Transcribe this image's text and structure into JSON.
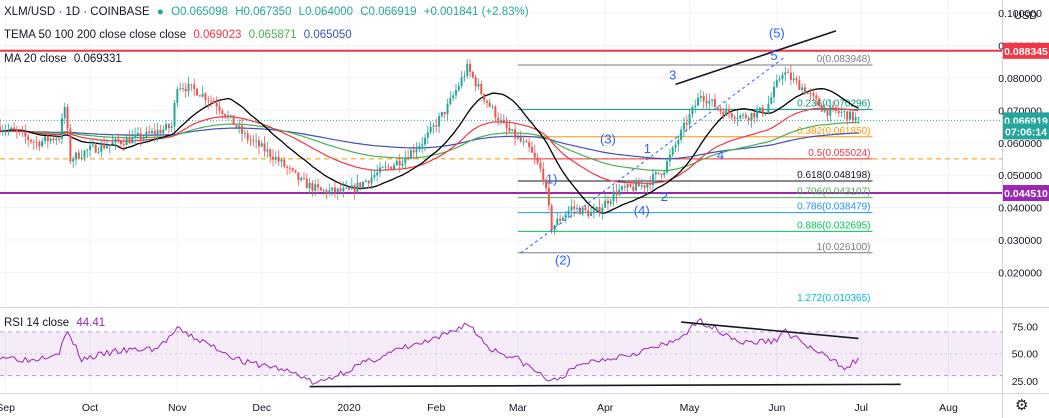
{
  "header": {
    "symbol": "XLM/USD · 1D · COINBASE",
    "o": "O0.065098",
    "h": "H0.067350",
    "l": "L0.064000",
    "c": "C0.066919",
    "chg": "+0.001841 (+2.83%)",
    "tema_label": "TEMA 50 100 200 close close close",
    "tema1": "0.069023",
    "tema2": "0.065871",
    "tema3": "0.065050",
    "ma_label": "MA 20 close",
    "ma_val": "0.069331",
    "currency": "USD",
    "rsi_label": "RSI 14 close",
    "rsi_val": "44.41"
  },
  "colors": {
    "up": "#26a69a",
    "down": "#ef5350",
    "tema1": "#f23645",
    "tema2": "#4caf50",
    "tema3": "#3f51b5",
    "ma": "#000000",
    "rsi": "#9c27b0",
    "wave": "#2962ff"
  },
  "chart_data": {
    "type": "candlestick",
    "symbol": "XLM/USD",
    "timeframe": "1D",
    "exchange": "COINBASE",
    "ylim": [
      0.01,
      0.104
    ],
    "y_ticks": [
      0.02,
      0.03,
      0.04,
      0.05,
      0.06,
      0.07,
      0.08,
      0.09,
      0.1
    ],
    "y_tick_labels": [
      "0.020000",
      "0.030000",
      "0.040000",
      "0.050000",
      "0.060000",
      "0.070000",
      "0.080000",
      "0.090000",
      "0.100000"
    ],
    "x_range": [
      "2019-08-30",
      "2020-08-20"
    ],
    "x_ticks": [
      {
        "date": "2019-09-01",
        "label": "Sep"
      },
      {
        "date": "2019-10-01",
        "label": "Oct"
      },
      {
        "date": "2019-11-01",
        "label": "Nov"
      },
      {
        "date": "2019-12-01",
        "label": "Dec"
      },
      {
        "date": "2020-01-01",
        "label": "2020"
      },
      {
        "date": "2020-02-01",
        "label": "Feb"
      },
      {
        "date": "2020-03-01",
        "label": "Mar"
      },
      {
        "date": "2020-04-01",
        "label": "Apr"
      },
      {
        "date": "2020-05-01",
        "label": "May"
      },
      {
        "date": "2020-06-01",
        "label": "Jun"
      },
      {
        "date": "2020-07-01",
        "label": "Jul"
      },
      {
        "date": "2020-08-01",
        "label": "Aug"
      }
    ],
    "price_path": [
      [
        "2019-08-30",
        0.065
      ],
      [
        "2019-09-05",
        0.063
      ],
      [
        "2019-09-12",
        0.06
      ],
      [
        "2019-09-20",
        0.062
      ],
      [
        "2019-09-22",
        0.071
      ],
      [
        "2019-09-24",
        0.055
      ],
      [
        "2019-10-01",
        0.058
      ],
      [
        "2019-10-10",
        0.06
      ],
      [
        "2019-10-20",
        0.062
      ],
      [
        "2019-10-30",
        0.065
      ],
      [
        "2019-11-01",
        0.078
      ],
      [
        "2019-11-08",
        0.076
      ],
      [
        "2019-11-15",
        0.072
      ],
      [
        "2019-11-25",
        0.062
      ],
      [
        "2019-12-05",
        0.056
      ],
      [
        "2019-12-15",
        0.048
      ],
      [
        "2019-12-22",
        0.045
      ],
      [
        "2020-01-01",
        0.045
      ],
      [
        "2020-01-10",
        0.05
      ],
      [
        "2020-01-20",
        0.055
      ],
      [
        "2020-01-28",
        0.061
      ],
      [
        "2020-02-05",
        0.071
      ],
      [
        "2020-02-12",
        0.083
      ],
      [
        "2020-02-18",
        0.074
      ],
      [
        "2020-02-25",
        0.065
      ],
      [
        "2020-03-05",
        0.058
      ],
      [
        "2020-03-10",
        0.05
      ],
      [
        "2020-03-13",
        0.034
      ],
      [
        "2020-03-20",
        0.04
      ],
      [
        "2020-03-28",
        0.038
      ],
      [
        "2020-04-05",
        0.045
      ],
      [
        "2020-04-15",
        0.047
      ],
      [
        "2020-04-22",
        0.052
      ],
      [
        "2020-04-28",
        0.063
      ],
      [
        "2020-05-05",
        0.075
      ],
      [
        "2020-05-12",
        0.07
      ],
      [
        "2020-05-20",
        0.068
      ],
      [
        "2020-05-28",
        0.07
      ],
      [
        "2020-06-03",
        0.082
      ],
      [
        "2020-06-10",
        0.077
      ],
      [
        "2020-06-18",
        0.07
      ],
      [
        "2020-06-25",
        0.069
      ],
      [
        "2020-06-30",
        0.0669
      ]
    ],
    "rsi_ylim": [
      15,
      90
    ],
    "rsi_ticks": [
      25,
      50,
      75
    ],
    "rsi_tick_labels": [
      "25.00",
      "50.00",
      "75.00"
    ],
    "rsi_bands": [
      30,
      70
    ],
    "rsi_path": [
      [
        "2019-08-30",
        48
      ],
      [
        "2019-09-10",
        44
      ],
      [
        "2019-09-20",
        52
      ],
      [
        "2019-09-23",
        70
      ],
      [
        "2019-09-28",
        45
      ],
      [
        "2019-10-10",
        52
      ],
      [
        "2019-10-25",
        55
      ],
      [
        "2019-11-01",
        72
      ],
      [
        "2019-11-15",
        55
      ],
      [
        "2019-11-25",
        42
      ],
      [
        "2019-12-05",
        38
      ],
      [
        "2019-12-15",
        30
      ],
      [
        "2019-12-20",
        22
      ],
      [
        "2020-01-05",
        40
      ],
      [
        "2020-01-20",
        55
      ],
      [
        "2020-02-01",
        63
      ],
      [
        "2020-02-12",
        78
      ],
      [
        "2020-02-20",
        55
      ],
      [
        "2020-03-01",
        45
      ],
      [
        "2020-03-13",
        24
      ],
      [
        "2020-03-25",
        42
      ],
      [
        "2020-04-10",
        50
      ],
      [
        "2020-04-25",
        60
      ],
      [
        "2020-05-01",
        72
      ],
      [
        "2020-05-05",
        80
      ],
      [
        "2020-05-20",
        60
      ],
      [
        "2020-06-01",
        62
      ],
      [
        "2020-06-03",
        72
      ],
      [
        "2020-06-15",
        52
      ],
      [
        "2020-06-25",
        38
      ],
      [
        "2020-06-30",
        44.41
      ]
    ],
    "horizontal_levels": [
      {
        "price": 0.088345,
        "label": "0.088345",
        "color": "#f23645",
        "style": "solid"
      },
      {
        "price": 0.04451,
        "label": "0.044510",
        "color": "#9c27b0",
        "style": "solid"
      },
      {
        "price": 0.0669,
        "label": "0.066919",
        "color": "#26a69a",
        "style": "dotted"
      },
      {
        "price": 0.055024,
        "label": "",
        "color": "#ff9800",
        "style": "dashed"
      }
    ],
    "fib_levels": [
      {
        "ratio": "0",
        "price": 0.083948,
        "label": "0(0.083948)",
        "color": "#787b86"
      },
      {
        "ratio": "0.236",
        "price": 0.070296,
        "label": "0.236(0.070296)",
        "color": "#089981"
      },
      {
        "ratio": "0.382",
        "price": 0.06185,
        "label": "0.382(0.061850)",
        "color": "#ff9800"
      },
      {
        "ratio": "0.5",
        "price": 0.055024,
        "label": "0.5(0.055024)",
        "color": "#f23645"
      },
      {
        "ratio": "0.618",
        "price": 0.048198,
        "label": "0.618(0.048198)",
        "color": "#131722"
      },
      {
        "ratio": "0.706",
        "price": 0.043107,
        "label": "0.706(0.043107)",
        "color": "#4caf50"
      },
      {
        "ratio": "0.786",
        "price": 0.038479,
        "label": "0.786(0.038479)",
        "color": "#2196f3"
      },
      {
        "ratio": "0.886",
        "price": 0.032695,
        "label": "0.886(0.032695)",
        "color": "#00c853"
      },
      {
        "ratio": "1",
        "price": 0.0261,
        "label": "1(0.026100)",
        "color": "#787b86"
      },
      {
        "ratio": "1.272",
        "price": 0.010365,
        "label": "1.272(0.010365)",
        "color": "#00bcd4"
      }
    ],
    "wave_labels": [
      {
        "text": "(5)",
        "date": "2020-06-01",
        "price": 0.0925
      },
      {
        "text": "5",
        "date": "2020-05-31",
        "price": 0.0855
      },
      {
        "text": "3",
        "date": "2020-04-25",
        "price": 0.0795
      },
      {
        "text": "(3)",
        "date": "2020-04-02",
        "price": 0.0598
      },
      {
        "text": "1",
        "date": "2020-04-16",
        "price": 0.0568
      },
      {
        "text": "4",
        "date": "2020-05-12",
        "price": 0.0548
      },
      {
        "text": "1)",
        "date": "2020-03-13",
        "price": 0.0475
      },
      {
        "text": "2",
        "date": "2020-04-22",
        "price": 0.042
      },
      {
        "text": "(4)",
        "date": "2020-04-14",
        "price": 0.0378
      },
      {
        "text": "(2)",
        "date": "2020-03-17",
        "price": 0.0225
      }
    ],
    "trend_lines": [
      {
        "from": [
          "2020-04-26",
          0.078
        ],
        "to": [
          "2020-06-22",
          0.0945
        ],
        "color": "#131722"
      },
      {
        "from": [
          "2020-03-02",
          0.026
        ],
        "to": [
          "2020-06-04",
          0.0865
        ],
        "color": "#2962ff",
        "style": "dashed"
      }
    ],
    "rsi_trend_lines": [
      {
        "from": [
          "2020-04-28",
          79
        ],
        "to": [
          "2020-06-30",
          64
        ]
      },
      {
        "from": [
          "2019-12-18",
          20
        ],
        "to": [
          "2020-07-15",
          22
        ]
      }
    ],
    "price_badges": [
      {
        "price": 0.088345,
        "label": "0.088345",
        "color": "#f23645"
      },
      {
        "price": 0.0669,
        "label": "0.066919",
        "color": "#26a69a"
      },
      {
        "price": 0.0635,
        "label": "07:06:14",
        "color": "#26a69a"
      },
      {
        "price": 0.04451,
        "label": "0.044510",
        "color": "#9c27b0"
      }
    ]
  }
}
